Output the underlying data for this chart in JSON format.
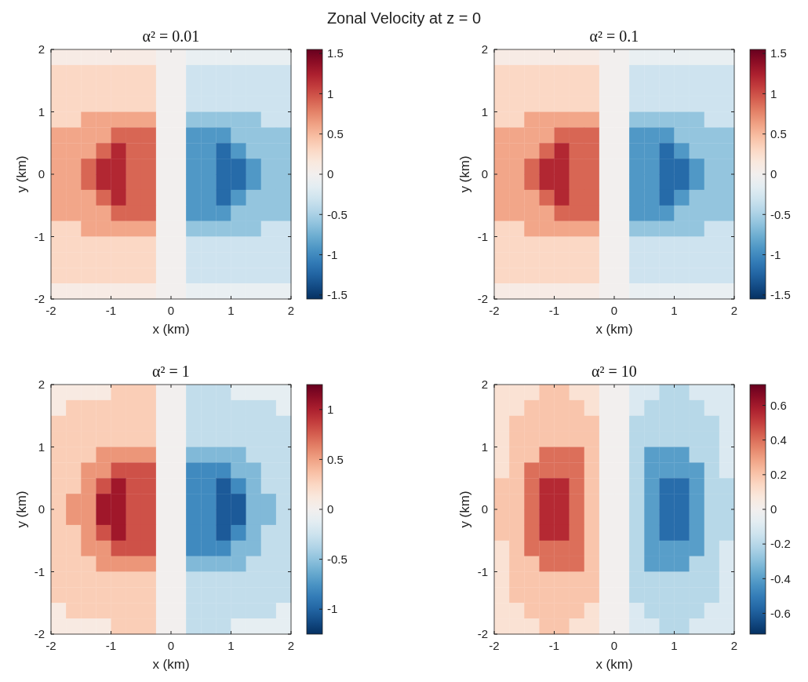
{
  "chart_data": [
    {
      "type": "heatmap",
      "title": "α² = 0.01",
      "annotations": [
        "Zonal Velocity at z = 0"
      ],
      "xlabel": "x (km)",
      "ylabel": "y (km)",
      "xlim": [
        -2,
        2
      ],
      "ylim": [
        -2,
        2
      ],
      "xticks": [
        -2,
        -1,
        0,
        1,
        2
      ],
      "yticks": [
        -2,
        -1,
        0,
        1,
        2
      ],
      "clim": [
        -1.55,
        1.55
      ],
      "cticks": [
        -1.5,
        -1,
        -0.5,
        0,
        0.5,
        1,
        1.5
      ],
      "cells": [
        [
          0.1,
          0.1,
          0.1,
          0.1,
          0.1,
          0.1,
          0.1,
          0,
          0,
          -0.1,
          -0.1,
          -0.1,
          -0.1,
          -0.1,
          -0.1,
          -0.1
        ],
        [
          0.3,
          0.3,
          0.3,
          0.3,
          0.3,
          0.3,
          0.3,
          0,
          0,
          -0.3,
          -0.3,
          -0.3,
          -0.3,
          -0.3,
          -0.3,
          -0.3
        ],
        [
          0.3,
          0.3,
          0.3,
          0.3,
          0.3,
          0.3,
          0.3,
          0,
          0,
          -0.3,
          -0.3,
          -0.3,
          -0.3,
          -0.3,
          -0.3,
          -0.3
        ],
        [
          0.3,
          0.3,
          0.3,
          0.3,
          0.3,
          0.3,
          0.3,
          0,
          0,
          -0.3,
          -0.3,
          -0.3,
          -0.3,
          -0.3,
          -0.3,
          -0.3
        ],
        [
          0.3,
          0.3,
          0.6,
          0.6,
          0.6,
          0.6,
          0.6,
          0,
          0,
          -0.6,
          -0.6,
          -0.6,
          -0.6,
          -0.6,
          -0.3,
          -0.3
        ],
        [
          0.6,
          0.6,
          0.6,
          0.6,
          0.9,
          0.9,
          0.9,
          0,
          0,
          -0.9,
          -0.9,
          -0.9,
          -0.6,
          -0.6,
          -0.6,
          -0.6
        ],
        [
          0.6,
          0.6,
          0.6,
          0.9,
          1.2,
          0.9,
          0.9,
          0,
          0,
          -0.9,
          -0.9,
          -1.2,
          -0.9,
          -0.6,
          -0.6,
          -0.6
        ],
        [
          0.6,
          0.6,
          0.9,
          1.2,
          1.2,
          0.9,
          0.9,
          0,
          0,
          -0.9,
          -0.9,
          -1.2,
          -1.2,
          -0.9,
          -0.6,
          -0.6
        ],
        [
          0.6,
          0.6,
          0.9,
          1.2,
          1.2,
          0.9,
          0.9,
          0,
          0,
          -0.9,
          -0.9,
          -1.2,
          -1.2,
          -0.9,
          -0.6,
          -0.6
        ],
        [
          0.6,
          0.6,
          0.6,
          0.9,
          1.2,
          0.9,
          0.9,
          0,
          0,
          -0.9,
          -0.9,
          -1.2,
          -0.9,
          -0.6,
          -0.6,
          -0.6
        ],
        [
          0.6,
          0.6,
          0.6,
          0.6,
          0.9,
          0.9,
          0.9,
          0,
          0,
          -0.9,
          -0.9,
          -0.9,
          -0.6,
          -0.6,
          -0.6,
          -0.6
        ],
        [
          0.3,
          0.3,
          0.6,
          0.6,
          0.6,
          0.6,
          0.6,
          0,
          0,
          -0.6,
          -0.6,
          -0.6,
          -0.6,
          -0.6,
          -0.3,
          -0.3
        ],
        [
          0.3,
          0.3,
          0.3,
          0.3,
          0.3,
          0.3,
          0.3,
          0,
          0,
          -0.3,
          -0.3,
          -0.3,
          -0.3,
          -0.3,
          -0.3,
          -0.3
        ],
        [
          0.3,
          0.3,
          0.3,
          0.3,
          0.3,
          0.3,
          0.3,
          0,
          0,
          -0.3,
          -0.3,
          -0.3,
          -0.3,
          -0.3,
          -0.3,
          -0.3
        ],
        [
          0.3,
          0.3,
          0.3,
          0.3,
          0.3,
          0.3,
          0.3,
          0,
          0,
          -0.3,
          -0.3,
          -0.3,
          -0.3,
          -0.3,
          -0.3,
          -0.3
        ],
        [
          0.1,
          0.1,
          0.1,
          0.1,
          0.1,
          0.1,
          0.1,
          0,
          0,
          -0.1,
          -0.1,
          -0.1,
          -0.1,
          -0.1,
          -0.1,
          -0.1
        ]
      ]
    },
    {
      "type": "heatmap",
      "title": "α² = 0.1",
      "xlabel": "x (km)",
      "ylabel": "y (km)",
      "xlim": [
        -2,
        2
      ],
      "ylim": [
        -2,
        2
      ],
      "xticks": [
        -2,
        -1,
        0,
        1,
        2
      ],
      "yticks": [
        -2,
        -1,
        0,
        1,
        2
      ],
      "clim": [
        -1.55,
        1.55
      ],
      "cticks": [
        -1.5,
        -1,
        -0.5,
        0,
        0.5,
        1,
        1.5
      ],
      "cells": [
        [
          0.1,
          0.1,
          0.1,
          0.1,
          0.1,
          0.1,
          0.1,
          0,
          0,
          -0.1,
          -0.1,
          -0.1,
          -0.1,
          -0.1,
          -0.1,
          -0.1
        ],
        [
          0.3,
          0.3,
          0.3,
          0.3,
          0.3,
          0.3,
          0.3,
          0,
          0,
          -0.3,
          -0.3,
          -0.3,
          -0.3,
          -0.3,
          -0.3,
          -0.3
        ],
        [
          0.3,
          0.3,
          0.3,
          0.3,
          0.3,
          0.3,
          0.3,
          0,
          0,
          -0.3,
          -0.3,
          -0.3,
          -0.3,
          -0.3,
          -0.3,
          -0.3
        ],
        [
          0.3,
          0.3,
          0.3,
          0.3,
          0.3,
          0.3,
          0.3,
          0,
          0,
          -0.3,
          -0.3,
          -0.3,
          -0.3,
          -0.3,
          -0.3,
          -0.3
        ],
        [
          0.3,
          0.3,
          0.6,
          0.6,
          0.6,
          0.6,
          0.6,
          0,
          0,
          -0.6,
          -0.6,
          -0.6,
          -0.6,
          -0.6,
          -0.3,
          -0.3
        ],
        [
          0.6,
          0.6,
          0.6,
          0.6,
          0.9,
          0.9,
          0.9,
          0,
          0,
          -0.9,
          -0.9,
          -0.9,
          -0.6,
          -0.6,
          -0.6,
          -0.6
        ],
        [
          0.6,
          0.6,
          0.6,
          0.9,
          1.2,
          0.9,
          0.9,
          0,
          0,
          -0.9,
          -0.9,
          -1.2,
          -0.9,
          -0.6,
          -0.6,
          -0.6
        ],
        [
          0.6,
          0.6,
          0.9,
          1.2,
          1.2,
          0.9,
          0.9,
          0,
          0,
          -0.9,
          -0.9,
          -1.2,
          -1.2,
          -0.9,
          -0.6,
          -0.6
        ],
        [
          0.6,
          0.6,
          0.9,
          1.2,
          1.2,
          0.9,
          0.9,
          0,
          0,
          -0.9,
          -0.9,
          -1.2,
          -1.2,
          -0.9,
          -0.6,
          -0.6
        ],
        [
          0.6,
          0.6,
          0.6,
          0.9,
          1.2,
          0.9,
          0.9,
          0,
          0,
          -0.9,
          -0.9,
          -1.2,
          -0.9,
          -0.6,
          -0.6,
          -0.6
        ],
        [
          0.6,
          0.6,
          0.6,
          0.6,
          0.9,
          0.9,
          0.9,
          0,
          0,
          -0.9,
          -0.9,
          -0.9,
          -0.6,
          -0.6,
          -0.6,
          -0.6
        ],
        [
          0.3,
          0.3,
          0.6,
          0.6,
          0.6,
          0.6,
          0.6,
          0,
          0,
          -0.6,
          -0.6,
          -0.6,
          -0.6,
          -0.6,
          -0.3,
          -0.3
        ],
        [
          0.3,
          0.3,
          0.3,
          0.3,
          0.3,
          0.3,
          0.3,
          0,
          0,
          -0.3,
          -0.3,
          -0.3,
          -0.3,
          -0.3,
          -0.3,
          -0.3
        ],
        [
          0.3,
          0.3,
          0.3,
          0.3,
          0.3,
          0.3,
          0.3,
          0,
          0,
          -0.3,
          -0.3,
          -0.3,
          -0.3,
          -0.3,
          -0.3,
          -0.3
        ],
        [
          0.3,
          0.3,
          0.3,
          0.3,
          0.3,
          0.3,
          0.3,
          0,
          0,
          -0.3,
          -0.3,
          -0.3,
          -0.3,
          -0.3,
          -0.3,
          -0.3
        ],
        [
          0.1,
          0.1,
          0.1,
          0.1,
          0.1,
          0.1,
          0.1,
          0,
          0,
          -0.1,
          -0.1,
          -0.1,
          -0.1,
          -0.1,
          -0.1,
          -0.1
        ]
      ]
    },
    {
      "type": "heatmap",
      "title": "α² = 1",
      "xlabel": "x (km)",
      "ylabel": "y (km)",
      "xlim": [
        -2,
        2
      ],
      "ylim": [
        -2,
        2
      ],
      "xticks": [
        -2,
        -1,
        0,
        1,
        2
      ],
      "yticks": [
        -2,
        -1,
        0,
        1,
        2
      ],
      "clim": [
        -1.25,
        1.25
      ],
      "cticks": [
        -1,
        -0.5,
        0,
        0.5,
        1
      ],
      "cells": [
        [
          0.1,
          0.1,
          0.1,
          0.1,
          0.3,
          0.3,
          0.3,
          0,
          0,
          -0.3,
          -0.3,
          -0.3,
          -0.1,
          -0.1,
          -0.1,
          -0.1
        ],
        [
          0.1,
          0.3,
          0.3,
          0.3,
          0.3,
          0.3,
          0.3,
          0,
          0,
          -0.3,
          -0.3,
          -0.3,
          -0.3,
          -0.3,
          -0.3,
          -0.1
        ],
        [
          0.3,
          0.3,
          0.3,
          0.3,
          0.3,
          0.3,
          0.3,
          0,
          0,
          -0.3,
          -0.3,
          -0.3,
          -0.3,
          -0.3,
          -0.3,
          -0.3
        ],
        [
          0.3,
          0.3,
          0.3,
          0.3,
          0.3,
          0.3,
          0.3,
          0,
          0,
          -0.3,
          -0.3,
          -0.3,
          -0.3,
          -0.3,
          -0.3,
          -0.3
        ],
        [
          0.3,
          0.3,
          0.3,
          0.55,
          0.55,
          0.55,
          0.55,
          0,
          0,
          -0.55,
          -0.55,
          -0.55,
          -0.55,
          -0.3,
          -0.3,
          -0.3
        ],
        [
          0.3,
          0.3,
          0.55,
          0.55,
          0.8,
          0.8,
          0.8,
          0,
          0,
          -0.8,
          -0.8,
          -0.8,
          -0.55,
          -0.55,
          -0.3,
          -0.3
        ],
        [
          0.3,
          0.3,
          0.55,
          0.8,
          1.05,
          0.8,
          0.8,
          0,
          0,
          -0.8,
          -0.8,
          -1.05,
          -0.8,
          -0.55,
          -0.3,
          -0.3
        ],
        [
          0.3,
          0.55,
          0.55,
          1.05,
          1.05,
          0.8,
          0.8,
          0,
          0,
          -0.8,
          -0.8,
          -1.05,
          -1.05,
          -0.55,
          -0.55,
          -0.3
        ],
        [
          0.3,
          0.55,
          0.55,
          1.05,
          1.05,
          0.8,
          0.8,
          0,
          0,
          -0.8,
          -0.8,
          -1.05,
          -1.05,
          -0.55,
          -0.55,
          -0.3
        ],
        [
          0.3,
          0.3,
          0.55,
          0.8,
          1.05,
          0.8,
          0.8,
          0,
          0,
          -0.8,
          -0.8,
          -1.05,
          -0.8,
          -0.55,
          -0.3,
          -0.3
        ],
        [
          0.3,
          0.3,
          0.55,
          0.55,
          0.8,
          0.8,
          0.8,
          0,
          0,
          -0.8,
          -0.8,
          -0.8,
          -0.55,
          -0.55,
          -0.3,
          -0.3
        ],
        [
          0.3,
          0.3,
          0.3,
          0.55,
          0.55,
          0.55,
          0.55,
          0,
          0,
          -0.55,
          -0.55,
          -0.55,
          -0.55,
          -0.3,
          -0.3,
          -0.3
        ],
        [
          0.3,
          0.3,
          0.3,
          0.3,
          0.3,
          0.3,
          0.3,
          0,
          0,
          -0.3,
          -0.3,
          -0.3,
          -0.3,
          -0.3,
          -0.3,
          -0.3
        ],
        [
          0.3,
          0.3,
          0.3,
          0.3,
          0.3,
          0.3,
          0.3,
          0,
          0,
          -0.3,
          -0.3,
          -0.3,
          -0.3,
          -0.3,
          -0.3,
          -0.3
        ],
        [
          0.1,
          0.3,
          0.3,
          0.3,
          0.3,
          0.3,
          0.3,
          0,
          0,
          -0.3,
          -0.3,
          -0.3,
          -0.3,
          -0.3,
          -0.3,
          -0.1
        ],
        [
          0.1,
          0.1,
          0.1,
          0.1,
          0.3,
          0.3,
          0.3,
          0,
          0,
          -0.3,
          -0.3,
          -0.3,
          -0.1,
          -0.1,
          -0.1,
          -0.1
        ]
      ]
    },
    {
      "type": "heatmap",
      "title": "α² = 10",
      "xlabel": "x (km)",
      "ylabel": "y (km)",
      "xlim": [
        -2,
        2
      ],
      "ylim": [
        -2,
        2
      ],
      "xticks": [
        -2,
        -1,
        0,
        1,
        2
      ],
      "yticks": [
        -2,
        -1,
        0,
        1,
        2
      ],
      "clim": [
        -0.72,
        0.72
      ],
      "cticks": [
        -0.6,
        -0.4,
        -0.2,
        0,
        0.2,
        0.4,
        0.6
      ],
      "cells": [
        [
          0.1,
          0.1,
          0.1,
          0.2,
          0.2,
          0.1,
          0.1,
          0,
          0,
          -0.1,
          -0.1,
          -0.2,
          -0.2,
          -0.1,
          -0.1,
          -0.1
        ],
        [
          0.1,
          0.1,
          0.2,
          0.2,
          0.2,
          0.2,
          0.1,
          0,
          0,
          -0.1,
          -0.2,
          -0.2,
          -0.2,
          -0.2,
          -0.1,
          -0.1
        ],
        [
          0.1,
          0.2,
          0.2,
          0.2,
          0.2,
          0.2,
          0.2,
          0,
          0,
          -0.2,
          -0.2,
          -0.2,
          -0.2,
          -0.2,
          -0.2,
          -0.1
        ],
        [
          0.1,
          0.2,
          0.2,
          0.2,
          0.2,
          0.2,
          0.2,
          0,
          0,
          -0.2,
          -0.2,
          -0.2,
          -0.2,
          -0.2,
          -0.2,
          -0.1
        ],
        [
          0.1,
          0.2,
          0.2,
          0.4,
          0.4,
          0.4,
          0.2,
          0,
          0,
          -0.2,
          -0.4,
          -0.4,
          -0.4,
          -0.2,
          -0.2,
          -0.1
        ],
        [
          0.1,
          0.2,
          0.4,
          0.4,
          0.4,
          0.4,
          0.2,
          0,
          0,
          -0.2,
          -0.4,
          -0.4,
          -0.4,
          -0.4,
          -0.2,
          -0.1
        ],
        [
          0.2,
          0.2,
          0.4,
          0.55,
          0.55,
          0.4,
          0.2,
          0,
          0,
          -0.2,
          -0.4,
          -0.55,
          -0.55,
          -0.4,
          -0.2,
          -0.2
        ],
        [
          0.2,
          0.2,
          0.4,
          0.55,
          0.55,
          0.4,
          0.2,
          0,
          0,
          -0.2,
          -0.4,
          -0.55,
          -0.55,
          -0.4,
          -0.2,
          -0.2
        ],
        [
          0.2,
          0.2,
          0.4,
          0.55,
          0.55,
          0.4,
          0.2,
          0,
          0,
          -0.2,
          -0.4,
          -0.55,
          -0.55,
          -0.4,
          -0.2,
          -0.2
        ],
        [
          0.2,
          0.2,
          0.4,
          0.55,
          0.55,
          0.4,
          0.2,
          0,
          0,
          -0.2,
          -0.4,
          -0.55,
          -0.55,
          -0.4,
          -0.2,
          -0.2
        ],
        [
          0.1,
          0.2,
          0.4,
          0.4,
          0.4,
          0.4,
          0.2,
          0,
          0,
          -0.2,
          -0.4,
          -0.4,
          -0.4,
          -0.4,
          -0.2,
          -0.1
        ],
        [
          0.1,
          0.2,
          0.2,
          0.4,
          0.4,
          0.4,
          0.2,
          0,
          0,
          -0.2,
          -0.4,
          -0.4,
          -0.4,
          -0.2,
          -0.2,
          -0.1
        ],
        [
          0.1,
          0.2,
          0.2,
          0.2,
          0.2,
          0.2,
          0.2,
          0,
          0,
          -0.2,
          -0.2,
          -0.2,
          -0.2,
          -0.2,
          -0.2,
          -0.1
        ],
        [
          0.1,
          0.2,
          0.2,
          0.2,
          0.2,
          0.2,
          0.2,
          0,
          0,
          -0.2,
          -0.2,
          -0.2,
          -0.2,
          -0.2,
          -0.2,
          -0.1
        ],
        [
          0.1,
          0.1,
          0.2,
          0.2,
          0.2,
          0.2,
          0.1,
          0,
          0,
          -0.1,
          -0.2,
          -0.2,
          -0.2,
          -0.2,
          -0.1,
          -0.1
        ],
        [
          0.1,
          0.1,
          0.1,
          0.2,
          0.2,
          0.1,
          0.1,
          0,
          0,
          -0.1,
          -0.1,
          -0.2,
          -0.2,
          -0.1,
          -0.1,
          -0.1
        ]
      ]
    }
  ]
}
